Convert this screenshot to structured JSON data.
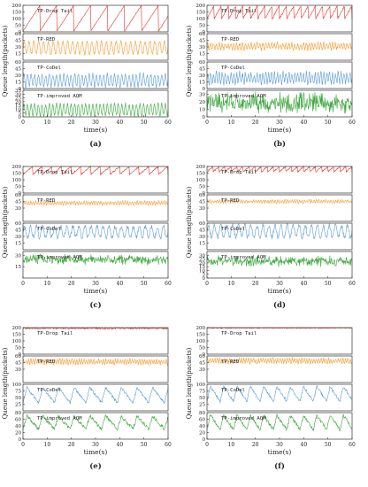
{
  "colors": {
    "drop_tail": "#e8312f",
    "red": "#f59a2a",
    "codel": "#5b9bd5",
    "improved": "#3aa63a",
    "frame": "#333333",
    "text": "#222222"
  },
  "chart_data": [
    {
      "type": "line",
      "caption": "(a)",
      "xlabel": "time(s)",
      "ylabel": "Queue length(packets)",
      "xlim": [
        0,
        60
      ],
      "xticks": [
        "0",
        "10",
        "20",
        "30",
        "40",
        "50",
        "60"
      ],
      "panels": [
        {
          "name": "TP-Drop Tail",
          "ylim": [
            0,
            200
          ],
          "yticks": [
            "0",
            "50",
            "100",
            "150",
            "200"
          ],
          "pattern": "saw",
          "base": 5,
          "peak": 200,
          "period": 7,
          "noise": 3
        },
        {
          "name": "TP-RED",
          "ylim": [
            0,
            60
          ],
          "yticks": [
            "15",
            "30",
            "45",
            "60"
          ],
          "pattern": "osc",
          "base": 14,
          "peak": 42,
          "period": 2,
          "noise": 3
        },
        {
          "name": "TP-CoDel",
          "ylim": [
            0,
            60
          ],
          "yticks": [
            "0",
            "15",
            "30",
            "45",
            "60"
          ],
          "pattern": "osc",
          "base": 5,
          "peak": 32,
          "period": 1.5,
          "noise": 4
        },
        {
          "name": "TP-improved AQM",
          "ylim": [
            0,
            35
          ],
          "yticks": [
            "0",
            "5",
            "10",
            "15",
            "20",
            "25",
            "30",
            "35"
          ],
          "pattern": "osc",
          "base": 2,
          "peak": 17,
          "period": 1.5,
          "noise": 2
        }
      ]
    },
    {
      "type": "line",
      "caption": "(b)",
      "xlabel": "time(s)",
      "ylabel": "Queue length(packets)",
      "xlim": [
        0,
        60
      ],
      "xticks": [
        "0",
        "10",
        "20",
        "30",
        "40",
        "50",
        "60"
      ],
      "panels": [
        {
          "name": "TP-Drop Tail",
          "ylim": [
            0,
            200
          ],
          "yticks": [
            "0",
            "50",
            "100",
            "150",
            "200"
          ],
          "pattern": "saw",
          "base": 100,
          "peak": 200,
          "period": 3,
          "noise": 6
        },
        {
          "name": "TP-RED",
          "ylim": [
            0,
            60
          ],
          "yticks": [
            "15",
            "30",
            "45",
            "60"
          ],
          "pattern": "osc",
          "base": 25,
          "peak": 38,
          "period": 1.2,
          "noise": 4
        },
        {
          "name": "TP-CoDel",
          "ylim": [
            0,
            60
          ],
          "yticks": [
            "0",
            "15",
            "30",
            "45",
            "60"
          ],
          "pattern": "osc",
          "base": 12,
          "peak": 35,
          "period": 1.2,
          "noise": 6
        },
        {
          "name": "TP-improved AQM",
          "ylim": [
            0,
            35
          ],
          "yticks": [
            "0",
            "10",
            "20",
            "30"
          ],
          "pattern": "noise",
          "base": 10,
          "peak": 28,
          "period": 1,
          "noise": 7
        }
      ]
    },
    {
      "type": "line",
      "caption": "(c)",
      "xlabel": "time(s)",
      "ylabel": "Queue length(packets)",
      "xlim": [
        0,
        60
      ],
      "xticks": [
        "0",
        "10",
        "20",
        "30",
        "40",
        "50",
        "60"
      ],
      "panels": [
        {
          "name": "TP-Drop Tail",
          "ylim": [
            0,
            200
          ],
          "yticks": [
            "0",
            "50",
            "100",
            "150",
            "200"
          ],
          "pattern": "saw",
          "base": 140,
          "peak": 200,
          "period": 4,
          "noise": 5
        },
        {
          "name": "TP-RED",
          "ylim": [
            0,
            60
          ],
          "yticks": [
            "30",
            "45",
            "60"
          ],
          "pattern": "osc",
          "base": 38,
          "peak": 45,
          "period": 1,
          "noise": 2
        },
        {
          "name": "TP-CoDel",
          "ylim": [
            0,
            60
          ],
          "yticks": [
            "15",
            "30",
            "45",
            "60"
          ],
          "pattern": "osc",
          "base": 28,
          "peak": 52,
          "period": 2.5,
          "noise": 5
        },
        {
          "name": "TP-improved AQM",
          "ylim": [
            0,
            35
          ],
          "yticks": [
            "15",
            "30"
          ],
          "pattern": "noise",
          "base": 20,
          "peak": 28,
          "period": 1,
          "noise": 4
        }
      ]
    },
    {
      "type": "line",
      "caption": "(d)",
      "xlabel": "time(s)",
      "ylabel": "Queue length(packets)",
      "xlim": [
        0,
        60
      ],
      "xticks": [
        "0",
        "10",
        "20",
        "30",
        "40",
        "50",
        "60"
      ],
      "panels": [
        {
          "name": "TP-Drop Tail",
          "ylim": [
            0,
            200
          ],
          "yticks": [
            "0",
            "50",
            "100",
            "150",
            "200"
          ],
          "pattern": "saw",
          "base": 160,
          "peak": 200,
          "period": 2.5,
          "noise": 5
        },
        {
          "name": "TP-RED",
          "ylim": [
            0,
            60
          ],
          "yticks": [
            "30",
            "45",
            "60"
          ],
          "pattern": "osc",
          "base": 42,
          "peak": 48,
          "period": 1,
          "noise": 2
        },
        {
          "name": "TP-CoDel",
          "ylim": [
            0,
            60
          ],
          "yticks": [
            "15",
            "30",
            "45",
            "60"
          ],
          "pattern": "osc",
          "base": 28,
          "peak": 55,
          "period": 2.5,
          "noise": 5
        },
        {
          "name": "TP-improved AQM",
          "ylim": [
            0,
            35
          ],
          "yticks": [
            "0",
            "5",
            "10",
            "15",
            "20",
            "25",
            "30"
          ],
          "pattern": "noise",
          "base": 18,
          "peak": 26,
          "period": 1,
          "noise": 4
        }
      ]
    },
    {
      "type": "line",
      "caption": "(e)",
      "xlabel": "time(s)",
      "ylabel": "Queue length(packets)",
      "xlim": [
        0,
        60
      ],
      "xticks": [
        "0",
        "10",
        "20",
        "30",
        "40",
        "50",
        "60"
      ],
      "panels": [
        {
          "name": "TP-Drop Tail",
          "ylim": [
            0,
            200
          ],
          "yticks": [
            "0",
            "50",
            "100",
            "150",
            "200"
          ],
          "pattern": "flat",
          "base": 190,
          "peak": 200,
          "period": 1,
          "noise": 4
        },
        {
          "name": "TP-RED",
          "ylim": [
            0,
            60
          ],
          "yticks": [
            "30",
            "45",
            "60"
          ],
          "pattern": "osc",
          "base": 42,
          "peak": 52,
          "period": 1,
          "noise": 3
        },
        {
          "name": "TP-CoDel",
          "ylim": [
            0,
            100
          ],
          "yticks": [
            "25",
            "50",
            "75",
            "100"
          ],
          "pattern": "sawdown",
          "base": 30,
          "peak": 88,
          "period": 6.5,
          "noise": 5
        },
        {
          "name": "TP-improved AQM",
          "ylim": [
            0,
            80
          ],
          "yticks": [
            "0",
            "20",
            "40",
            "60",
            "80"
          ],
          "pattern": "sawdown",
          "base": 30,
          "peak": 70,
          "period": 6.5,
          "noise": 5
        }
      ]
    },
    {
      "type": "line",
      "caption": "(f)",
      "xlabel": "time(s)",
      "ylabel": "Queue length(packets)",
      "xlim": [
        0,
        60
      ],
      "xticks": [
        "0",
        "10",
        "20",
        "30",
        "40",
        "50",
        "60"
      ],
      "panels": [
        {
          "name": "TP-Drop Tail",
          "ylim": [
            0,
            200
          ],
          "yticks": [
            "0",
            "50",
            "100",
            "150",
            "200"
          ],
          "pattern": "flat",
          "base": 194,
          "peak": 200,
          "period": 1,
          "noise": 2
        },
        {
          "name": "TP-RED",
          "ylim": [
            0,
            60
          ],
          "yticks": [
            "30",
            "45",
            "60"
          ],
          "pattern": "osc",
          "base": 44,
          "peak": 54,
          "period": 1,
          "noise": 3
        },
        {
          "name": "TP-CoDel",
          "ylim": [
            0,
            100
          ],
          "yticks": [
            "25",
            "50",
            "75",
            "100"
          ],
          "pattern": "sawdown",
          "base": 35,
          "peak": 92,
          "period": 5.5,
          "noise": 5
        },
        {
          "name": "TP-improved AQM",
          "ylim": [
            0,
            80
          ],
          "yticks": [
            "0",
            "20",
            "40",
            "60",
            "80"
          ],
          "pattern": "sawdown",
          "base": 28,
          "peak": 72,
          "period": 5.5,
          "noise": 5
        }
      ]
    }
  ]
}
